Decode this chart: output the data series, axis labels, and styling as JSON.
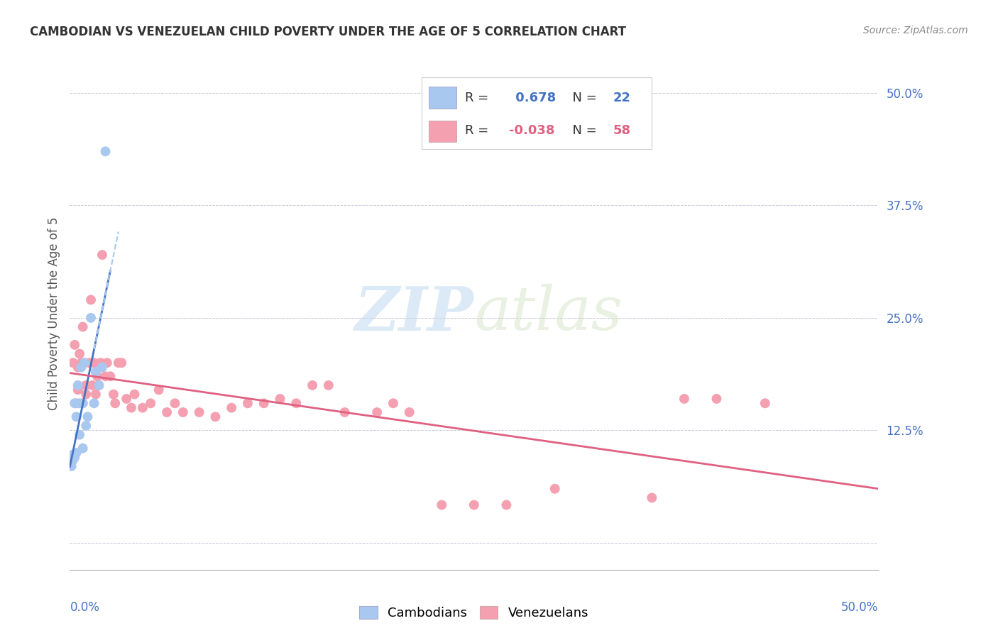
{
  "title": "CAMBODIAN VS VENEZUELAN CHILD POVERTY UNDER THE AGE OF 5 CORRELATION CHART",
  "source": "Source: ZipAtlas.com",
  "ylabel": "Child Poverty Under the Age of 5",
  "xlim": [
    0.0,
    0.5
  ],
  "ylim": [
    -0.03,
    0.54
  ],
  "yticks": [
    0.0,
    0.125,
    0.25,
    0.375,
    0.5
  ],
  "ytick_labels": [
    "",
    "12.5%",
    "25.0%",
    "37.5%",
    "50.0%"
  ],
  "cambodian_color": "#a8c8f0",
  "venezuelan_color": "#f4a0b0",
  "cambodian_line_color": "#4472c4",
  "venezuelan_line_color": "#e06080",
  "cambodian_R": 0.678,
  "cambodian_N": 22,
  "venezuelan_R": -0.038,
  "venezuelan_N": 58,
  "watermark_zip": "ZIP",
  "watermark_atlas": "atlas",
  "cambodian_x": [
    0.001,
    0.002,
    0.002,
    0.003,
    0.003,
    0.004,
    0.004,
    0.005,
    0.006,
    0.006,
    0.007,
    0.008,
    0.008,
    0.009,
    0.01,
    0.011,
    0.013,
    0.015,
    0.016,
    0.018,
    0.02,
    0.022
  ],
  "cambodian_y": [
    0.085,
    0.092,
    0.098,
    0.095,
    0.155,
    0.14,
    0.1,
    0.175,
    0.12,
    0.155,
    0.195,
    0.155,
    0.105,
    0.2,
    0.13,
    0.14,
    0.25,
    0.155,
    0.19,
    0.175,
    0.195,
    0.435
  ],
  "venezuelan_x": [
    0.002,
    0.003,
    0.004,
    0.005,
    0.005,
    0.006,
    0.007,
    0.008,
    0.008,
    0.009,
    0.01,
    0.01,
    0.012,
    0.013,
    0.014,
    0.015,
    0.016,
    0.017,
    0.018,
    0.019,
    0.02,
    0.022,
    0.023,
    0.025,
    0.027,
    0.028,
    0.03,
    0.032,
    0.035,
    0.038,
    0.04,
    0.045,
    0.05,
    0.055,
    0.06,
    0.065,
    0.07,
    0.08,
    0.09,
    0.1,
    0.11,
    0.12,
    0.13,
    0.14,
    0.15,
    0.16,
    0.17,
    0.19,
    0.2,
    0.21,
    0.23,
    0.25,
    0.27,
    0.3,
    0.36,
    0.38,
    0.4,
    0.43
  ],
  "venezuelan_y": [
    0.2,
    0.22,
    0.155,
    0.195,
    0.17,
    0.21,
    0.2,
    0.24,
    0.155,
    0.2,
    0.175,
    0.165,
    0.2,
    0.27,
    0.175,
    0.2,
    0.165,
    0.185,
    0.175,
    0.2,
    0.32,
    0.185,
    0.2,
    0.185,
    0.165,
    0.155,
    0.2,
    0.2,
    0.16,
    0.15,
    0.165,
    0.15,
    0.155,
    0.17,
    0.145,
    0.155,
    0.145,
    0.145,
    0.14,
    0.15,
    0.155,
    0.155,
    0.16,
    0.155,
    0.175,
    0.175,
    0.145,
    0.145,
    0.155,
    0.145,
    0.042,
    0.042,
    0.042,
    0.06,
    0.05,
    0.16,
    0.16,
    0.155
  ]
}
